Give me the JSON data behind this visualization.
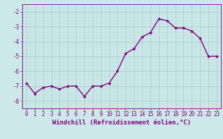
{
  "x": [
    0,
    1,
    2,
    3,
    4,
    5,
    6,
    7,
    8,
    9,
    10,
    11,
    12,
    13,
    14,
    15,
    16,
    17,
    18,
    19,
    20,
    21,
    22,
    23
  ],
  "y": [
    -6.8,
    -7.5,
    -7.1,
    -7.0,
    -7.2,
    -7.0,
    -7.0,
    -7.7,
    -7.0,
    -7.0,
    -6.8,
    -6.0,
    -4.8,
    -4.5,
    -3.7,
    -3.4,
    -2.5,
    -2.6,
    -3.1,
    -3.1,
    -3.3,
    -3.8,
    -5.0,
    -5.0
  ],
  "line_color": "#800080",
  "marker": "*",
  "bg_color": "#cce8e8",
  "grid_major_color": "#aacccc",
  "grid_minor_color": "#bbdddd",
  "xlabel": "Windchill (Refroidissement éolien,°C)",
  "ylim": [
    -8.5,
    -1.5
  ],
  "xlim": [
    -0.5,
    23.5
  ],
  "yticks": [
    -8,
    -7,
    -6,
    -5,
    -4,
    -3,
    -2
  ],
  "xticks": [
    0,
    1,
    2,
    3,
    4,
    5,
    6,
    7,
    8,
    9,
    10,
    11,
    12,
    13,
    14,
    15,
    16,
    17,
    18,
    19,
    20,
    21,
    22,
    23
  ],
  "tick_color": "#800080",
  "label_color": "#800080",
  "font_size_xlabel": 6.5,
  "font_size_tick": 5.5,
  "line_width": 1.0,
  "marker_size": 3.0
}
